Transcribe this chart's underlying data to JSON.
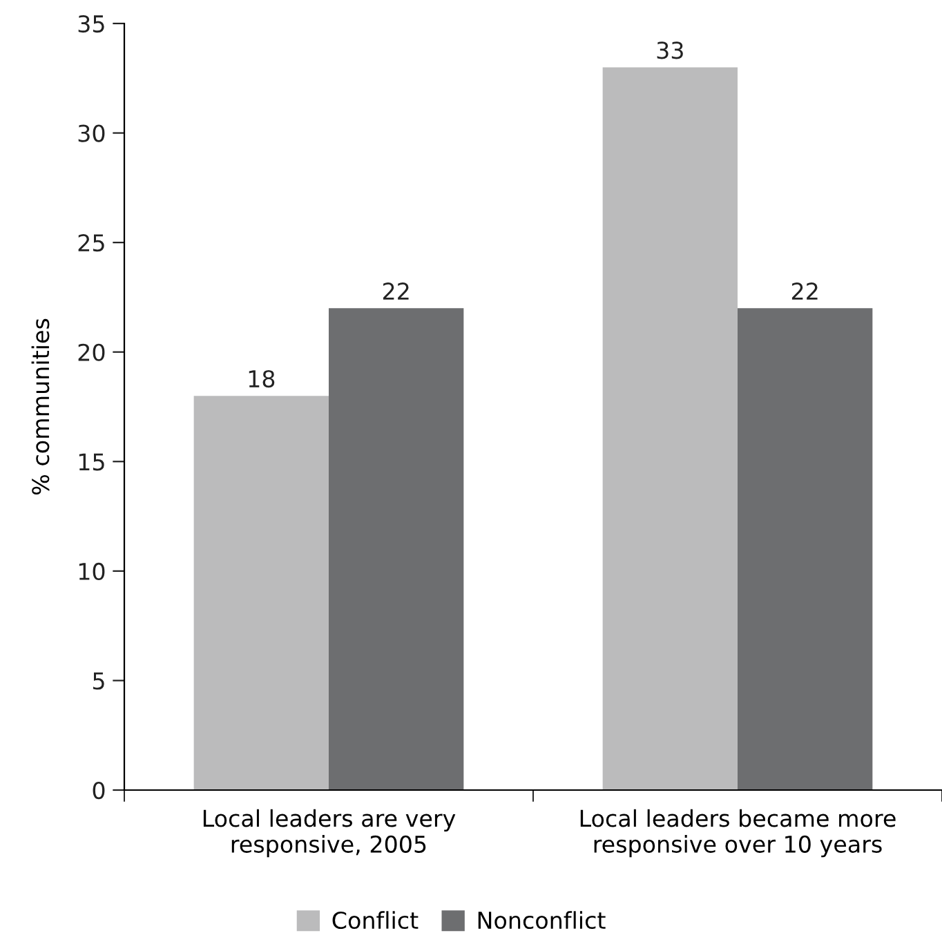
{
  "chart_data": {
    "type": "bar",
    "ylabel": "% communities",
    "categories": [
      "Local leaders are very\nresponsive, 2005",
      "Local leaders became more\nresponsive over 10 years"
    ],
    "series": [
      {
        "name": "Conflict",
        "color": "#bbbbbc",
        "values": [
          18,
          33
        ]
      },
      {
        "name": "Nonconflict",
        "color": "#6d6e70",
        "values": [
          22,
          22
        ]
      }
    ],
    "ylim": [
      0,
      35
    ],
    "yticks": [
      0,
      5,
      10,
      15,
      20,
      25,
      30,
      35
    ],
    "data_labels": true,
    "grid": false,
    "legend": "bottom"
  }
}
